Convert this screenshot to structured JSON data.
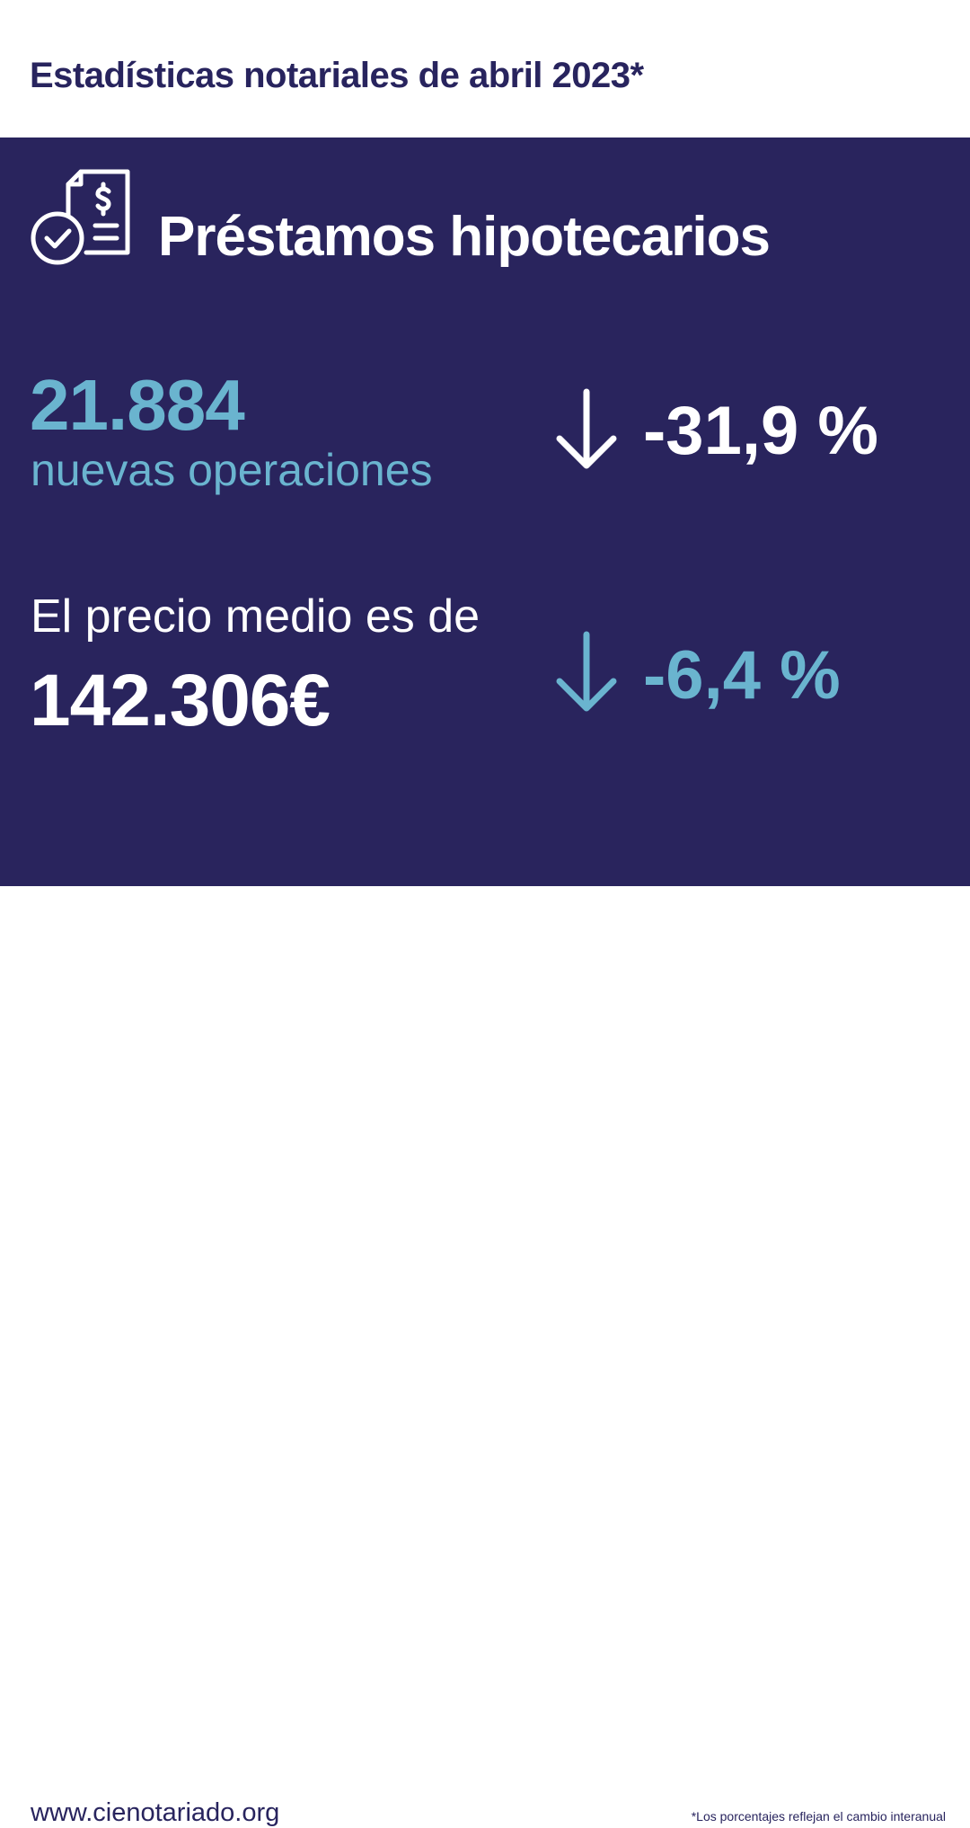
{
  "header": {
    "title": "Estadísticas notariales de abril 2023*"
  },
  "section": {
    "icon": "mortgage-document-icon",
    "title": "Préstamos hipotecarios"
  },
  "operations": {
    "value": "21.884",
    "label": "nuevas operaciones",
    "change": "-31,9 %",
    "change_icon": "arrow-down-icon"
  },
  "price": {
    "label": "El precio medio es de",
    "value": "142.306€",
    "change": "-6,4 %",
    "change_icon": "arrow-down-icon"
  },
  "footer": {
    "url": "www.cienotariado.org",
    "note": "*Los porcentajes reflejan el cambio interanual"
  },
  "colors": {
    "navy": "#29245d",
    "light_blue": "#6ab4cf",
    "white": "#ffffff"
  }
}
